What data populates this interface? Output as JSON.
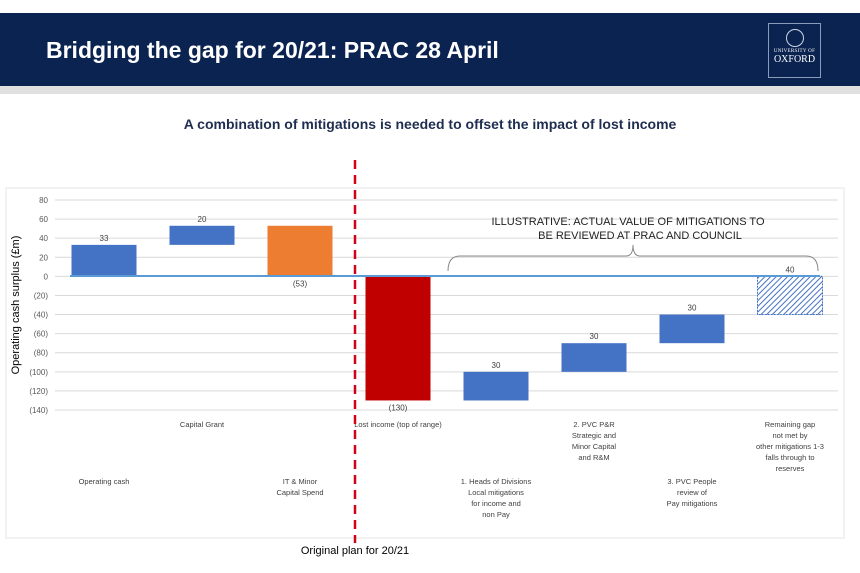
{
  "header": {
    "title": "Bridging the gap for 20/21:  PRAC 28 April",
    "logo_text": [
      "UNIVERSITY OF",
      "OXFORD"
    ]
  },
  "subtitle": "A combination of mitigations is needed to offset the impact of lost income",
  "annotation": {
    "illustrative": [
      "ILLUSTRATIVE:  ACTUAL VALUE OF MITIGATIONS  TO",
      "BE REVIEWED AT PRAC AND COUNCIL"
    ],
    "original_plan": "Original plan for 20/21"
  },
  "colors": {
    "blue": "#4472c4",
    "orange": "#ed7d31",
    "red": "#c00000",
    "header": "#0b2350",
    "dash": "#d0021b"
  },
  "chart_data": {
    "type": "bar",
    "subtype": "waterfall",
    "ylabel": "Operating cash surplus (£m)",
    "ylim": [
      -140,
      80
    ],
    "yticks": [
      "80",
      "60",
      "40",
      "20",
      "0",
      "(20)",
      "(40)",
      "(60)",
      "(80)",
      "(100)",
      "(120)",
      "(140)"
    ],
    "ytick_values": [
      80,
      60,
      40,
      20,
      0,
      -20,
      -40,
      -60,
      -80,
      -100,
      -120,
      -140
    ],
    "grid": true,
    "categories": [
      [
        "Operating cash"
      ],
      [
        "Capital Grant"
      ],
      [
        "IT & Minor",
        "Capital Spend"
      ],
      [
        "Lost income (top of range)"
      ],
      [
        "1. Heads of Divisions",
        "Local mitigations",
        "for income and",
        "non Pay"
      ],
      [
        "2. PVC P&R",
        "Strategic and",
        "Minor Capital",
        "and R&M"
      ],
      [
        "3. PVC People",
        "review of",
        "Pay mitigations"
      ],
      [
        "Remaining gap",
        "not met by",
        "other mitigations 1-3",
        "falls through to",
        "reserves"
      ]
    ],
    "bars": [
      {
        "start": 0,
        "end": 33,
        "label": "33",
        "color": "blue"
      },
      {
        "start": 33,
        "end": 53,
        "label": "20",
        "color": "blue"
      },
      {
        "start": 53,
        "end": 0,
        "label": "(53)",
        "color": "orange"
      },
      {
        "start": 0,
        "end": -130,
        "label": "(130)",
        "color": "red"
      },
      {
        "start": -130,
        "end": -100,
        "label": "30",
        "color": "blue"
      },
      {
        "start": -100,
        "end": -70,
        "label": "30",
        "color": "blue"
      },
      {
        "start": -70,
        "end": -40,
        "label": "30",
        "color": "blue"
      },
      {
        "start": -40,
        "end": 0,
        "label": "40",
        "color": "hatched"
      }
    ]
  }
}
